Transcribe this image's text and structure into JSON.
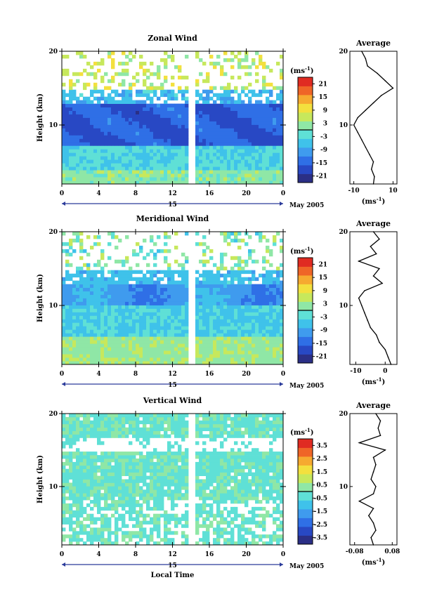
{
  "chart_data": [
    {
      "type": "heatmap",
      "title": "Zonal Wind",
      "ylabel": "Height (km)",
      "xlabel": "",
      "x_ticks": [
        "0",
        "4",
        "8",
        "12",
        "16",
        "20",
        "0"
      ],
      "y_ticks": [
        "20",
        "10"
      ],
      "xlim": [
        0,
        24
      ],
      "ylim": [
        2,
        20
      ],
      "date_label": "15",
      "month_label": "May 2005",
      "colorbar": {
        "unit": "(ms",
        "unit_sup": "-1",
        "unit_close": ")",
        "ticks": [
          "21",
          "15",
          "9",
          "3",
          "-3",
          "-9",
          "-15",
          "-21"
        ],
        "range": [
          -24,
          24
        ]
      },
      "profile": {
        "title": "Average",
        "x_ticks": [
          "-10",
          "10"
        ],
        "xlim": [
          -12,
          12
        ],
        "y_ticks": [
          "20",
          "10"
        ],
        "xlabel": "(ms",
        "xlabel_sup": "-1",
        "xlabel_close": ")",
        "heights": [
          2,
          3,
          4,
          5,
          6,
          7,
          8,
          9,
          10,
          11,
          12,
          13,
          14,
          15,
          16,
          17,
          18,
          19,
          20
        ],
        "values": [
          0,
          0.5,
          -1,
          0,
          -2,
          -4,
          -6,
          -8,
          -10,
          -8,
          -4,
          0,
          4,
          10,
          6,
          2,
          -3,
          -4,
          -6
        ]
      }
    },
    {
      "type": "heatmap",
      "title": "Meridional Wind",
      "ylabel": "Height (km)",
      "xlabel": "",
      "x_ticks": [
        "0",
        "4",
        "8",
        "12",
        "16",
        "20",
        "0"
      ],
      "y_ticks": [
        "20",
        "10"
      ],
      "xlim": [
        0,
        24
      ],
      "ylim": [
        2,
        20
      ],
      "date_label": "15",
      "month_label": "May 2005",
      "colorbar": {
        "unit": "(ms",
        "unit_sup": "-1",
        "unit_close": ")",
        "ticks": [
          "21",
          "15",
          "9",
          "3",
          "-3",
          "-9",
          "-15",
          "-21"
        ],
        "range": [
          -24,
          24
        ]
      },
      "profile": {
        "title": "Average",
        "x_ticks": [
          "-10",
          "0"
        ],
        "xlim": [
          -12,
          4
        ],
        "y_ticks": [
          "20",
          "10"
        ],
        "xlabel": "(ms",
        "xlabel_sup": "-1",
        "xlabel_close": ")",
        "heights": [
          2,
          3,
          4,
          5,
          6,
          7,
          8,
          9,
          10,
          11,
          12,
          13,
          14,
          15,
          16,
          17,
          18,
          19,
          20
        ],
        "values": [
          2,
          1,
          0,
          -2,
          -3,
          -5,
          -6,
          -7,
          -8,
          -9,
          -7,
          -1,
          -4,
          -2,
          -9,
          -3,
          -5,
          -2,
          -4
        ]
      }
    },
    {
      "type": "heatmap",
      "title": "Vertical Wind",
      "ylabel": "Height (km)",
      "xlabel": "Local Time",
      "x_ticks": [
        "0",
        "4",
        "8",
        "12",
        "16",
        "20",
        "0"
      ],
      "y_ticks": [
        "20",
        "10"
      ],
      "xlim": [
        0,
        24
      ],
      "ylim": [
        2,
        20
      ],
      "date_label": "15",
      "month_label": "May 2005",
      "colorbar": {
        "unit": "(ms",
        "unit_sup": "-1",
        "unit_close": ")",
        "ticks": [
          "3.5",
          "2.5",
          "1.5",
          "0.5",
          "-0.5",
          "-1.5",
          "-2.5",
          "-3.5"
        ],
        "range": [
          -4,
          4
        ]
      },
      "profile": {
        "title": "Average",
        "x_ticks": [
          "-0.08",
          "0.08"
        ],
        "xlim": [
          -0.1,
          0.1
        ],
        "y_ticks": [
          "20",
          "10"
        ],
        "xlabel": "(ms",
        "xlabel_sup": "-1",
        "xlabel_close": ")",
        "heights": [
          2,
          3,
          4,
          5,
          6,
          7,
          8,
          9,
          10,
          11,
          12,
          13,
          14,
          15,
          16,
          17,
          18,
          19,
          20
        ],
        "values": [
          0,
          -0.01,
          0.01,
          0,
          -0.02,
          0,
          -0.06,
          0,
          0.01,
          -0.01,
          0,
          0.01,
          0,
          0.05,
          -0.06,
          0.03,
          0.02,
          0.03,
          0.01
        ]
      }
    }
  ]
}
